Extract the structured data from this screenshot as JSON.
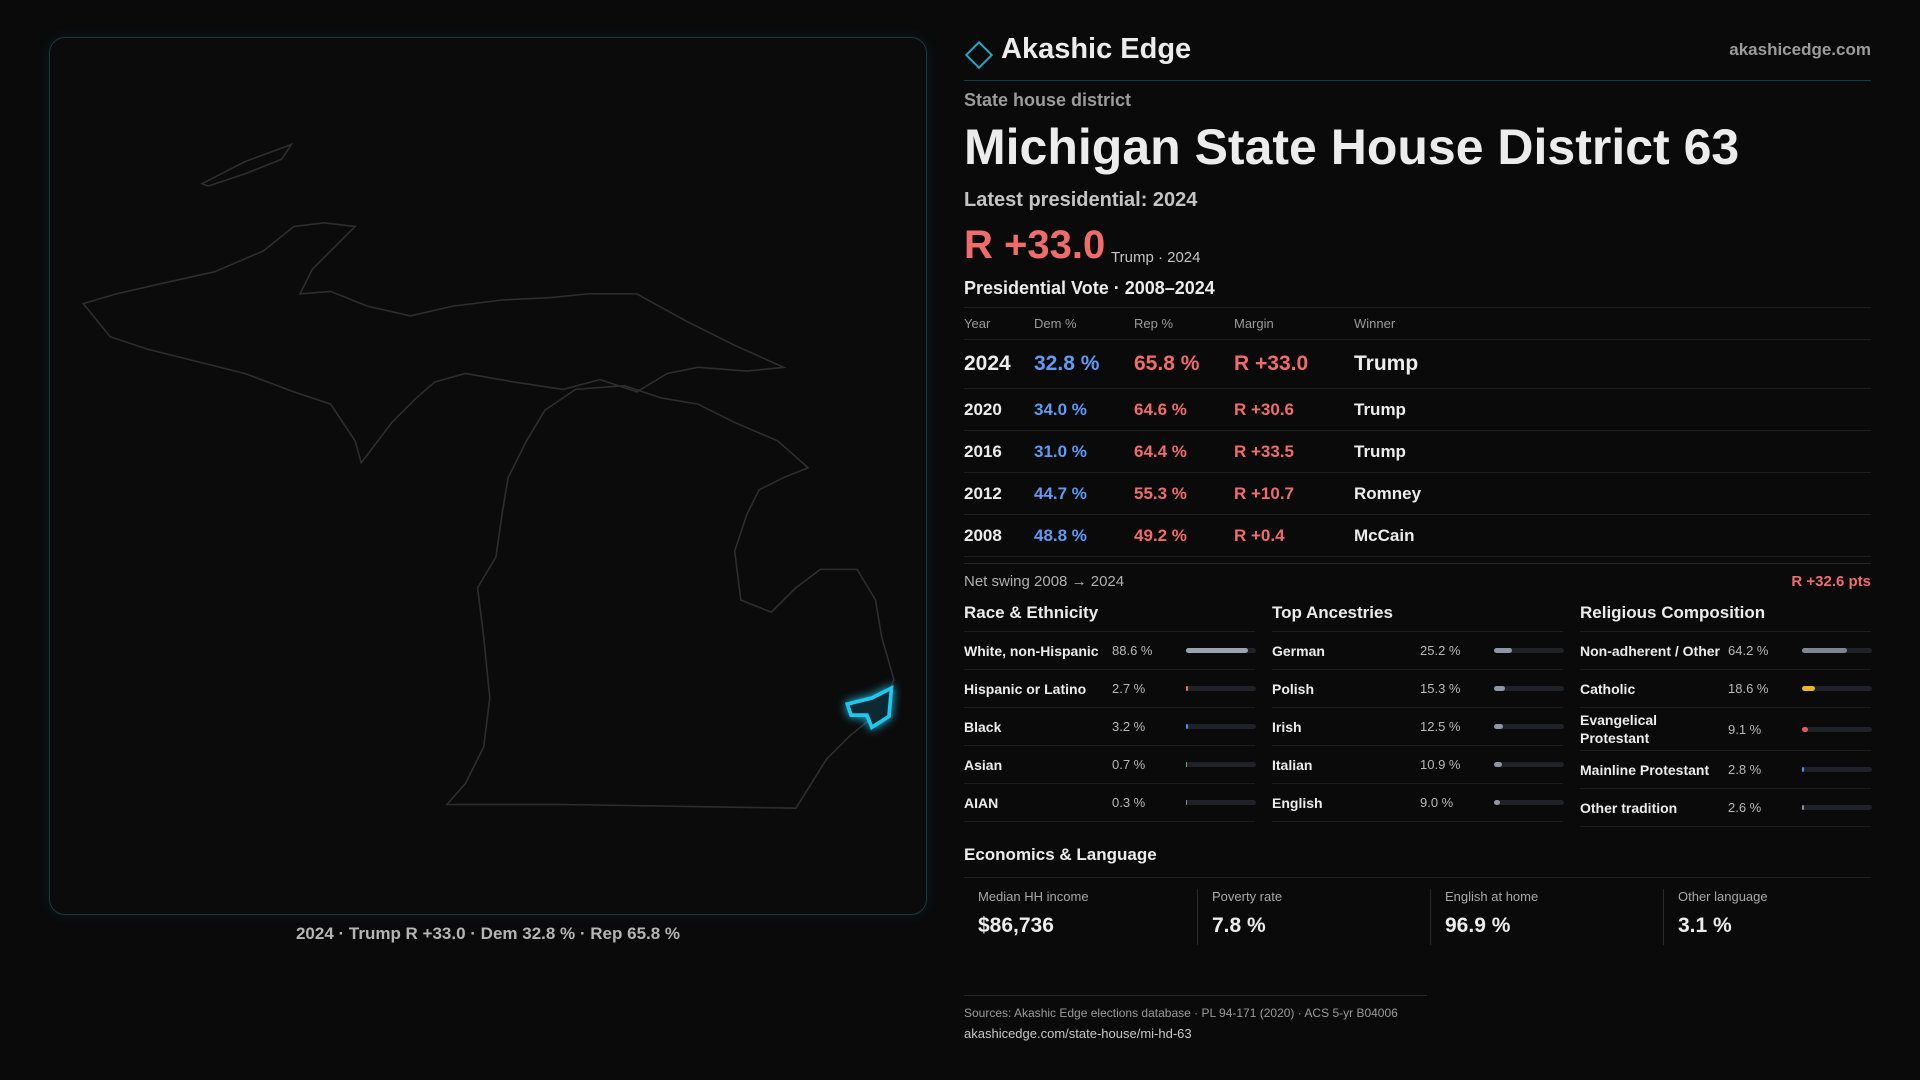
{
  "brand": "Akashic Edge",
  "site": "akashicedge.com",
  "kicker": "State house district",
  "title": "Michigan State House District 63",
  "latest_label": "Latest presidential: 2024",
  "headline_margin": "R +33.0",
  "headline_sub": "Trump · 2024",
  "map_caption": "2024 · Trump R +33.0 · Dem 32.8 % · Rep 65.8 %",
  "table": {
    "title": "Presidential Vote · 2008–2024",
    "header": [
      "Year",
      "Dem %",
      "Rep %",
      "Margin",
      "Winner"
    ],
    "rows": [
      [
        "2024",
        "32.8 %",
        "65.8 %",
        "R +33.0",
        "Trump"
      ],
      [
        "2020",
        "34.0 %",
        "64.6 %",
        "R +30.6",
        "Trump"
      ],
      [
        "2016",
        "31.0 %",
        "64.4 %",
        "R +33.5",
        "Trump"
      ],
      [
        "2012",
        "44.7 %",
        "55.3 %",
        "R +10.7",
        "Romney"
      ],
      [
        "2008",
        "48.8 %",
        "49.2 %",
        "R +0.4",
        "McCain"
      ]
    ]
  },
  "swing": {
    "label": "Net swing 2008 → 2024",
    "value": "R +32.6 pts"
  },
  "sections": [
    {
      "title": "Race & Ethnicity",
      "rows": [
        {
          "label": "White, non-Hispanic",
          "value": 88.6,
          "value_label": "88.6 %",
          "color": "#9aa3b0"
        },
        {
          "label": "Hispanic or Latino",
          "value": 2.7,
          "value_label": "2.7 %",
          "color": "#e8823a"
        },
        {
          "label": "Black",
          "value": 3.2,
          "value_label": "3.2 %",
          "color": "#4f8ff0"
        },
        {
          "label": "Asian",
          "value": 0.7,
          "value_label": "0.7 %",
          "color": "#3fbf7f"
        },
        {
          "label": "AIAN",
          "value": 0.3,
          "value_label": "0.3 %",
          "color": "#8a8f99"
        }
      ]
    },
    {
      "title": "Top Ancestries",
      "rows": [
        {
          "label": "German",
          "value": 25.2,
          "value_label": "25.2 %",
          "color": "#8e96a3"
        },
        {
          "label": "Polish",
          "value": 15.3,
          "value_label": "15.3 %",
          "color": "#8e96a3"
        },
        {
          "label": "Irish",
          "value": 12.5,
          "value_label": "12.5 %",
          "color": "#8e96a3"
        },
        {
          "label": "Italian",
          "value": 10.9,
          "value_label": "10.9 %",
          "color": "#8e96a3"
        },
        {
          "label": "English",
          "value": 9.0,
          "value_label": "9.0 %",
          "color": "#8e96a3"
        }
      ]
    },
    {
      "title": "Religious Composition",
      "rows": [
        {
          "label": "Non-adherent / Other",
          "value": 64.2,
          "value_label": "64.2 %",
          "color": "#7d8591"
        },
        {
          "label": "Catholic",
          "value": 18.6,
          "value_label": "18.6 %",
          "color": "#e7b62c"
        },
        {
          "label": "Evangelical Protestant",
          "value": 9.1,
          "value_label": "9.1 %",
          "color": "#e05a5a"
        },
        {
          "label": "Mainline Protestant",
          "value": 2.8,
          "value_label": "2.8 %",
          "color": "#4f8ff0"
        },
        {
          "label": "Other tradition",
          "value": 2.6,
          "value_label": "2.6 %",
          "color": "#8a8f99"
        }
      ]
    }
  ],
  "economics": {
    "title": "Economics & Language",
    "items": [
      {
        "label": "Median HH income",
        "value": "$86,736"
      },
      {
        "label": "Poverty rate",
        "value": "7.8 %"
      },
      {
        "label": "English at home",
        "value": "96.9 %"
      },
      {
        "label": "Other language",
        "value": "3.1 %"
      }
    ]
  },
  "footer": {
    "sources": "Sources: Akashic Edge elections database · PL 94-171 (2020) · ACS 5-yr B04006",
    "url": "akashicedge.com/state-house/mi-hd-63"
  }
}
